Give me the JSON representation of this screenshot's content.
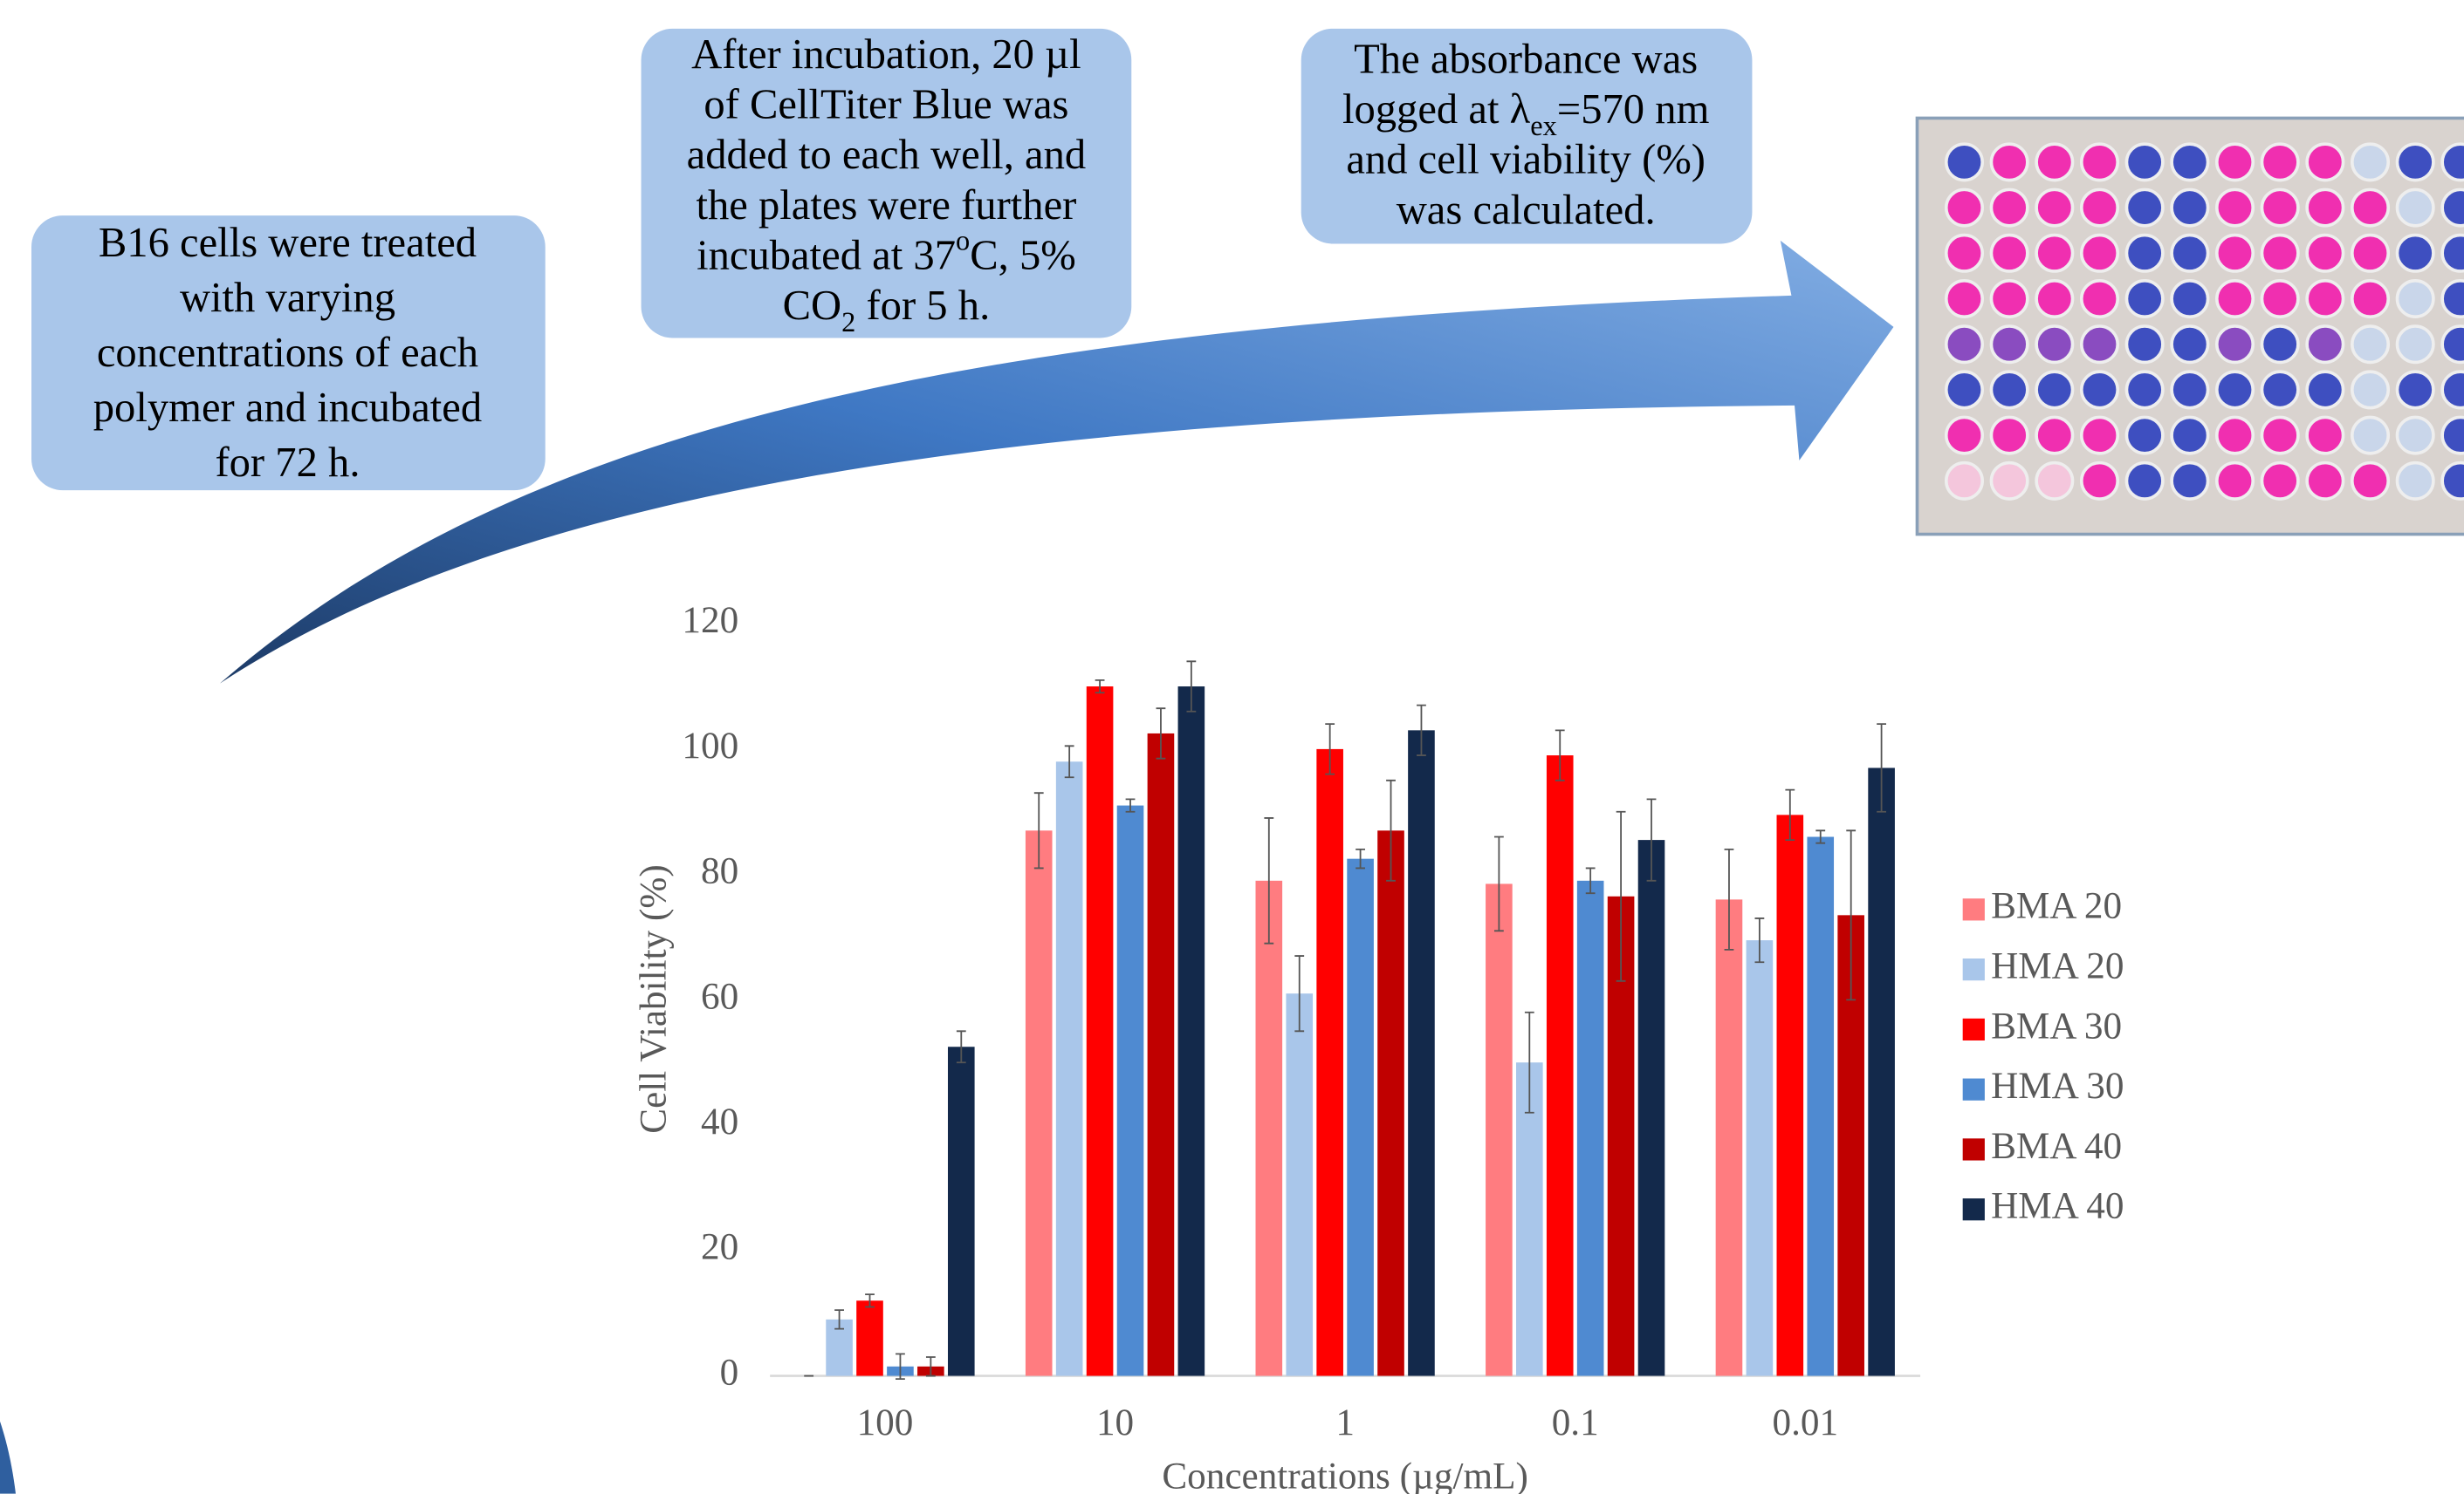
{
  "steps": [
    {
      "lines": [
        [
          "B16 cells were treated"
        ],
        [
          "with varying"
        ],
        [
          "concentrations of each"
        ],
        [
          "polymer and incubated"
        ],
        [
          "for 72 h."
        ]
      ]
    },
    {
      "lines": [
        [
          "After incubation, 20 µl"
        ],
        [
          "of CellTiter Blue was"
        ],
        [
          "added to each well, and"
        ],
        [
          "the plates were further"
        ],
        [
          "incubated at 37",
          {
            "sup": "o"
          },
          "C, 5%"
        ],
        [
          "CO",
          {
            "sub": "2"
          },
          " for 5 h."
        ]
      ]
    },
    {
      "lines": [
        [
          "The absorbance was"
        ],
        [
          "logged at λ",
          {
            "sub": "ex"
          },
          "=570 nm"
        ],
        [
          "and cell viability (%)"
        ],
        [
          "was calculated."
        ]
      ]
    }
  ],
  "chart_data": {
    "type": "bar",
    "xlabel": "Concentrations (µg/mL)",
    "ylabel": "Cell Viability (%)",
    "categories": [
      "100",
      "10",
      "1",
      "0.1",
      "0.01"
    ],
    "ylim": [
      0,
      120
    ],
    "yticks": [
      0,
      20,
      40,
      60,
      80,
      100,
      120
    ],
    "grid": false,
    "legend": "right",
    "series": [
      {
        "name": "BMA 20",
        "color": "#ff7c80",
        "values": [
          0,
          87,
          79,
          78.5,
          76
        ],
        "errors": [
          0,
          6,
          10,
          7.5,
          8
        ]
      },
      {
        "name": "HMA 20",
        "color": "#a9c6ea",
        "values": [
          9,
          98,
          61,
          50,
          69.5
        ],
        "errors": [
          1.5,
          2.5,
          6,
          8,
          3.5
        ]
      },
      {
        "name": "BMA 30",
        "color": "#ff0000",
        "values": [
          12,
          110,
          100,
          99,
          89.5
        ],
        "errors": [
          1,
          1,
          4,
          4,
          4
        ]
      },
      {
        "name": "HMA 30",
        "color": "#4f8ad1",
        "values": [
          1.5,
          91,
          82.5,
          79,
          86
        ],
        "errors": [
          2,
          1,
          1.5,
          2,
          1
        ]
      },
      {
        "name": "BMA 40",
        "color": "#c00000",
        "values": [
          1.5,
          102.5,
          87,
          76.5,
          73.5
        ],
        "errors": [
          1.5,
          4,
          8,
          13.5,
          13.5
        ]
      },
      {
        "name": "HMA 40",
        "color": "#13294b",
        "values": [
          52.5,
          110,
          103,
          85.5,
          97
        ],
        "errors": [
          2.5,
          4,
          4,
          6.5,
          7
        ]
      }
    ]
  }
}
